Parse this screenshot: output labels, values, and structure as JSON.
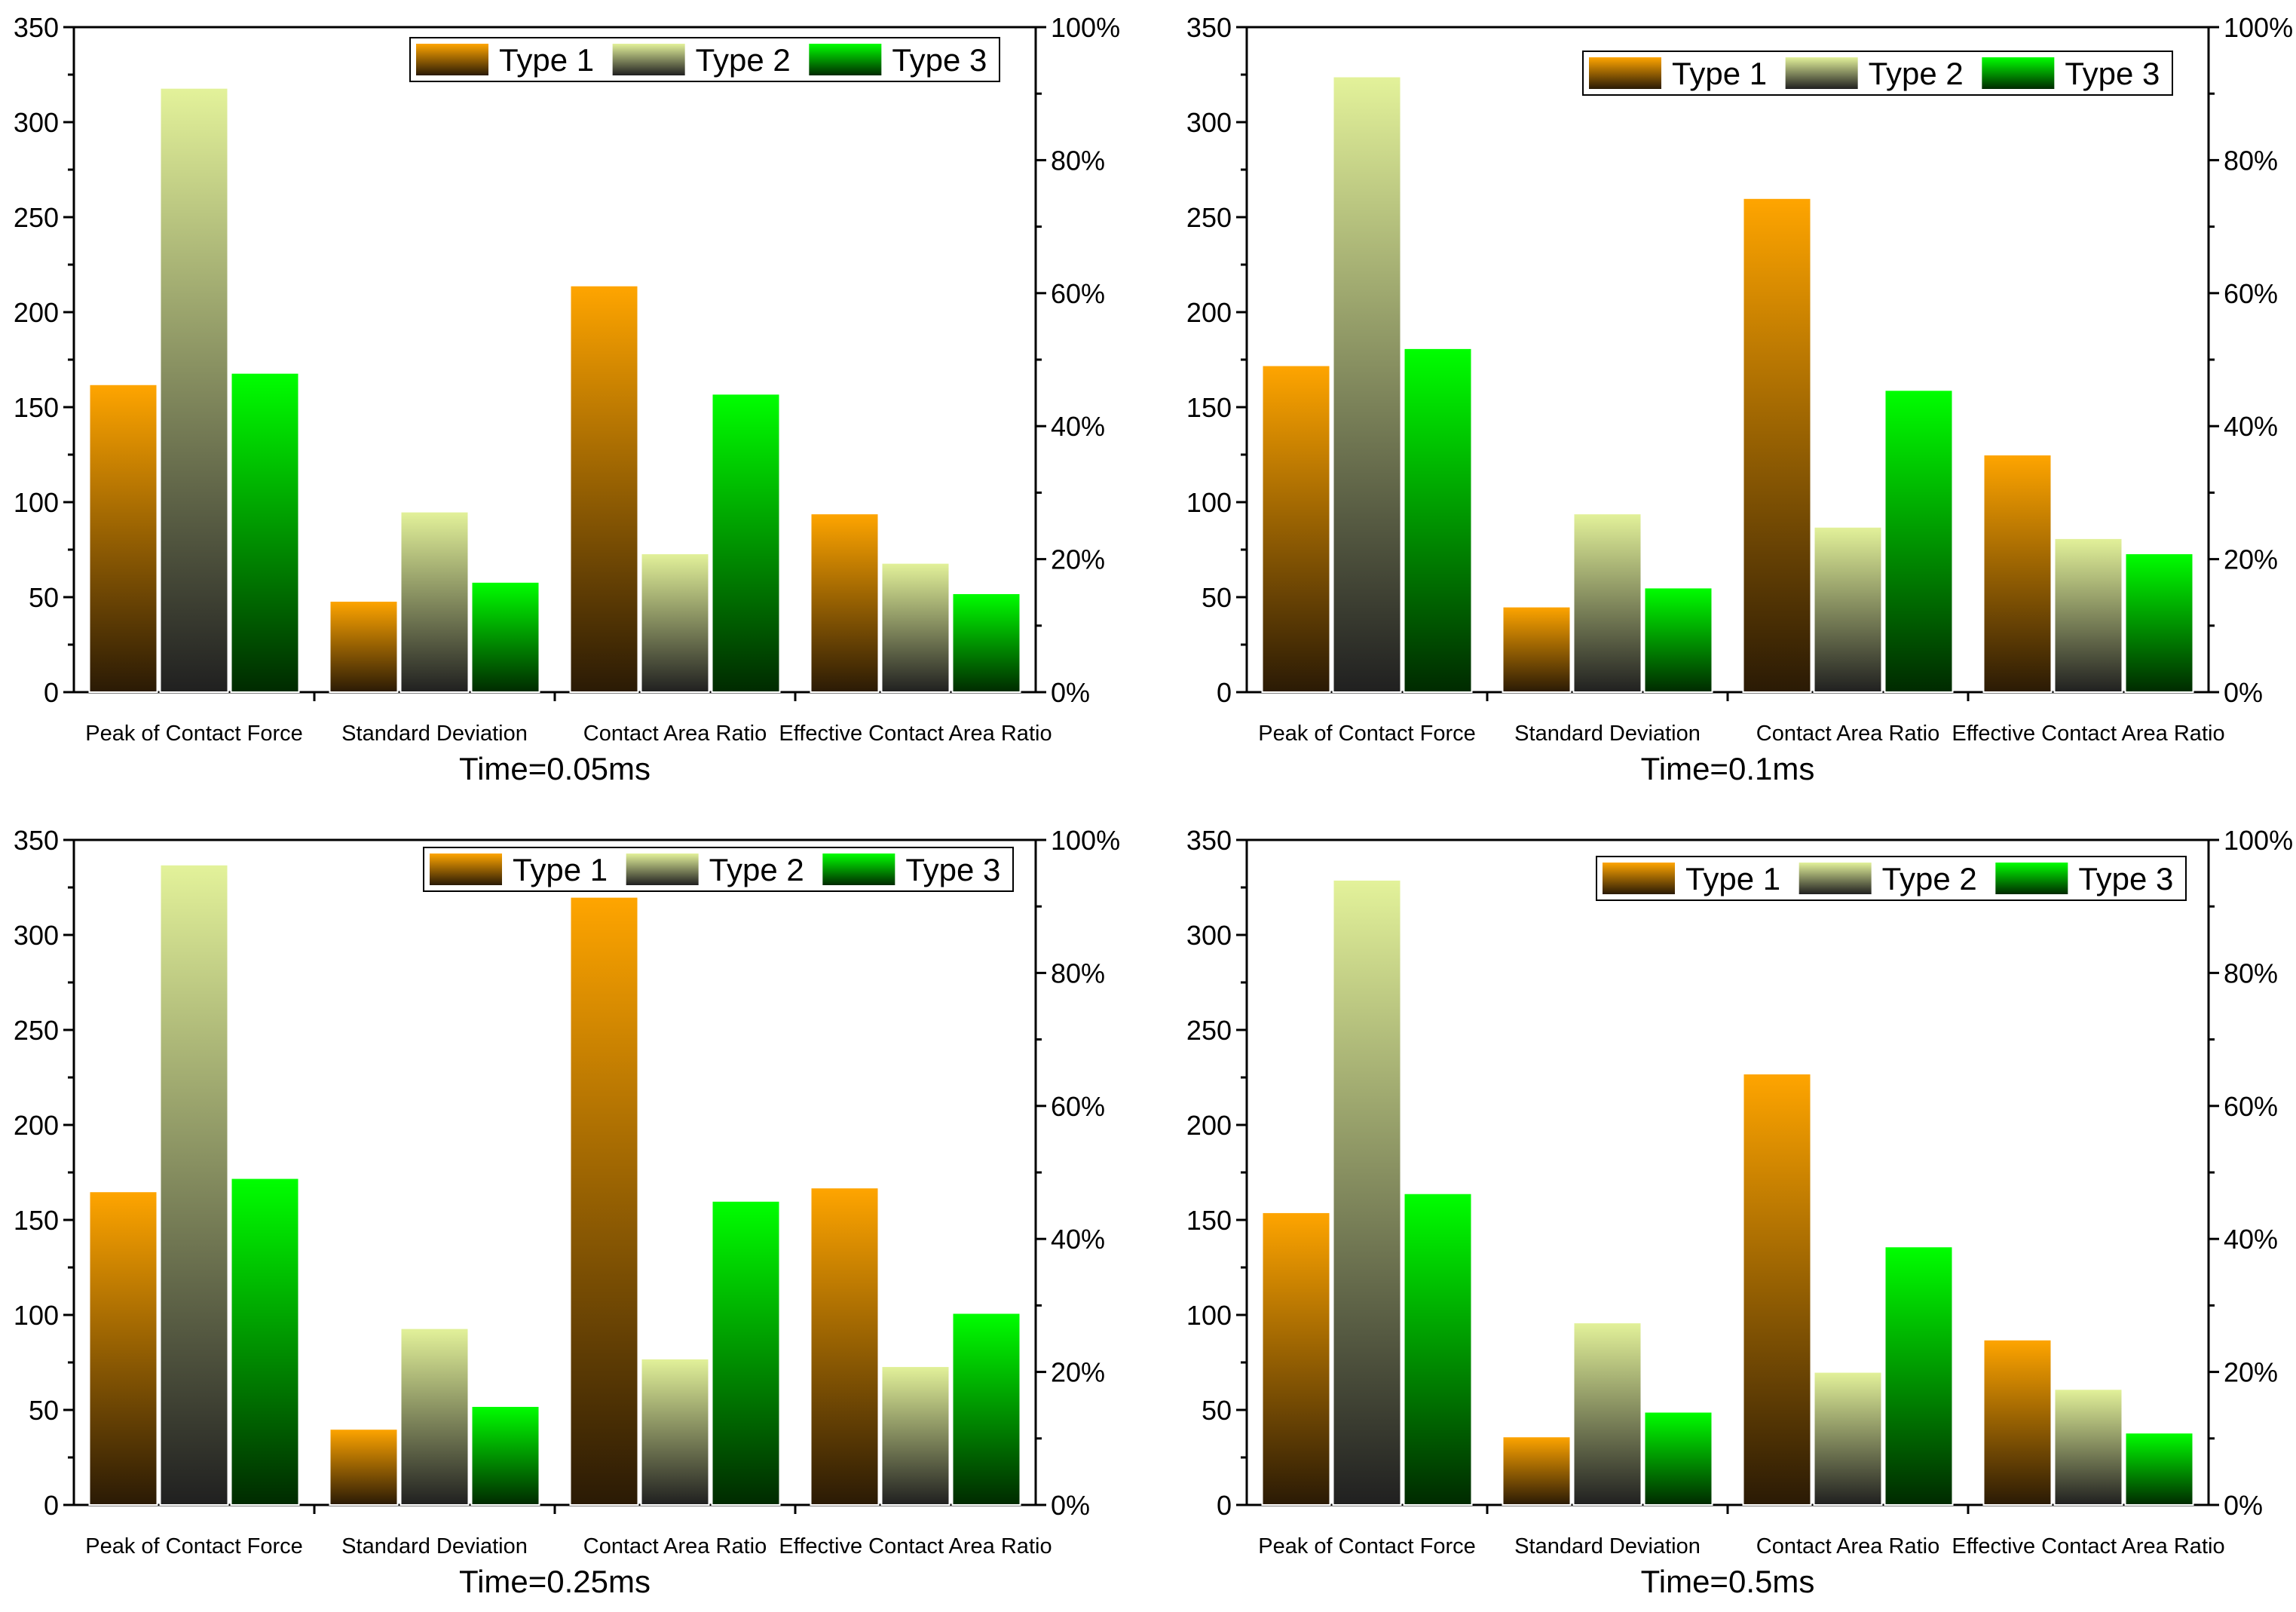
{
  "series_colors": {
    "Type 1": {
      "top": "#ffa500",
      "bottom": "#2a1a05"
    },
    "Type 2": {
      "top": "#e3f29a",
      "bottom": "#202020"
    },
    "Type 3": {
      "top": "#00ff00",
      "bottom": "#002a00"
    }
  },
  "chart_data": [
    {
      "type": "bar",
      "xlabel": "Time=0.05ms",
      "categories": [
        "Peak of Contact Force",
        "Standard Deviation",
        "Contact Area Ratio",
        "Effective Contact Area Ratio"
      ],
      "series": [
        {
          "name": "Type 1",
          "values": [
            162,
            48,
            214,
            94
          ]
        },
        {
          "name": "Type 2",
          "values": [
            318,
            95,
            73,
            68
          ]
        },
        {
          "name": "Type 3",
          "values": [
            168,
            58,
            157,
            52
          ]
        }
      ],
      "ylim": [
        0,
        350
      ],
      "yticks": [
        "0",
        "50",
        "100",
        "150",
        "200",
        "250",
        "300",
        "350"
      ],
      "y2lim": [
        0,
        100
      ],
      "y2ticks": [
        "0%",
        "20%",
        "40%",
        "60%",
        "80%",
        "100%"
      ],
      "legend": "top-right"
    },
    {
      "type": "bar",
      "xlabel": "Time=0.1ms",
      "categories": [
        "Peak of Contact Force",
        "Standard Deviation",
        "Contact Area Ratio",
        "Effective Contact Area Ratio"
      ],
      "series": [
        {
          "name": "Type 1",
          "values": [
            172,
            45,
            260,
            125
          ]
        },
        {
          "name": "Type 2",
          "values": [
            324,
            94,
            87,
            81
          ]
        },
        {
          "name": "Type 3",
          "values": [
            181,
            55,
            159,
            73
          ]
        }
      ],
      "ylim": [
        0,
        350
      ],
      "yticks": [
        "0",
        "50",
        "100",
        "150",
        "200",
        "250",
        "300",
        "350"
      ],
      "y2lim": [
        0,
        100
      ],
      "y2ticks": [
        "0%",
        "20%",
        "40%",
        "60%",
        "80%",
        "100%"
      ],
      "legend": "top-right"
    },
    {
      "type": "bar",
      "xlabel": "Time=0.25ms",
      "categories": [
        "Peak of Contact Force",
        "Standard Deviation",
        "Contact Area Ratio",
        "Effective Contact Area Ratio"
      ],
      "series": [
        {
          "name": "Type 1",
          "values": [
            165,
            40,
            320,
            167
          ]
        },
        {
          "name": "Type 2",
          "values": [
            337,
            93,
            77,
            73
          ]
        },
        {
          "name": "Type 3",
          "values": [
            172,
            52,
            160,
            101
          ]
        }
      ],
      "ylim": [
        0,
        350
      ],
      "yticks": [
        "0",
        "50",
        "100",
        "150",
        "200",
        "250",
        "300",
        "350"
      ],
      "y2lim": [
        0,
        100
      ],
      "y2ticks": [
        "0%",
        "20%",
        "40%",
        "60%",
        "80%",
        "100%"
      ],
      "legend": "top-right"
    },
    {
      "type": "bar",
      "xlabel": "Time=0.5ms",
      "categories": [
        "Peak of Contact Force",
        "Standard Deviation",
        "Contact Area Ratio",
        "Effective Contact Area Ratio"
      ],
      "series": [
        {
          "name": "Type 1",
          "values": [
            154,
            36,
            227,
            87
          ]
        },
        {
          "name": "Type 2",
          "values": [
            329,
            96,
            70,
            61
          ]
        },
        {
          "name": "Type 3",
          "values": [
            164,
            49,
            136,
            38
          ]
        }
      ],
      "ylim": [
        0,
        350
      ],
      "yticks": [
        "0",
        "50",
        "100",
        "150",
        "200",
        "250",
        "300",
        "350"
      ],
      "y2lim": [
        0,
        100
      ],
      "y2ticks": [
        "0%",
        "20%",
        "40%",
        "60%",
        "80%",
        "100%"
      ],
      "legend": "top-right"
    }
  ]
}
